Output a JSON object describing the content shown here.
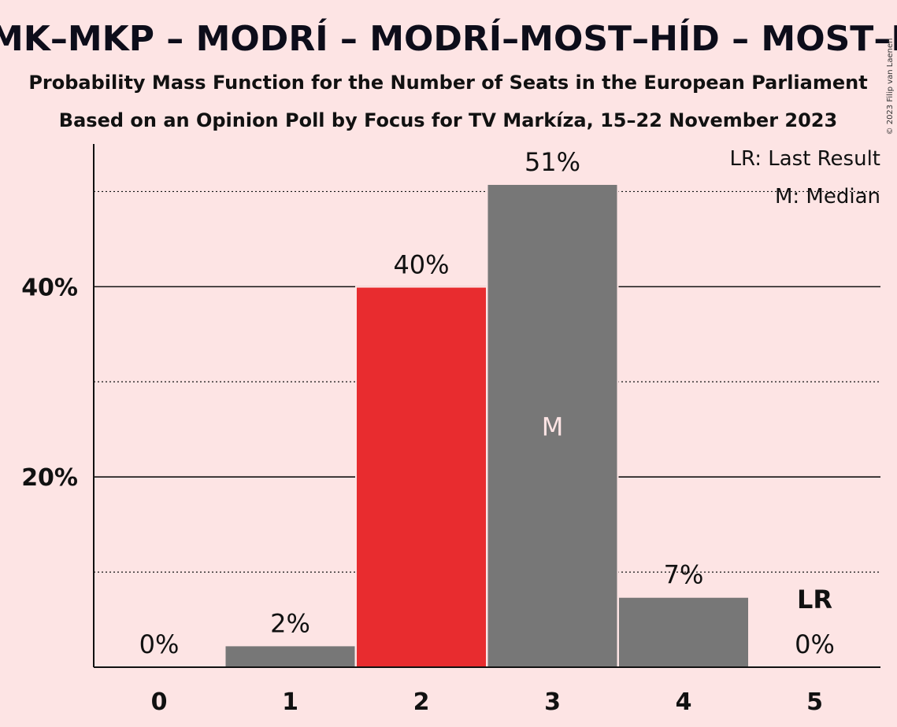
{
  "header": {
    "title": "– SMK–MKP – MODRÍ – MODRÍ–MOST–HÍD – MOST–HÍD",
    "subtitle": "Probability Mass Function for the Number of Seats in the European Parliament",
    "subtitle2": "Based on an Opinion Poll by Focus for TV Markíza, 15–22 November 2023"
  },
  "legend": {
    "last_result": "LR: Last Result",
    "median": "M: Median"
  },
  "copyright": "© 2023 Filip van Laenen",
  "colors": {
    "background": "#fde4e4",
    "bar_default": "#777777",
    "bar_highlight": "#e82c2f",
    "median_text": "#fde4e4"
  },
  "chart_data": {
    "type": "bar",
    "categories": [
      "0",
      "1",
      "2",
      "3",
      "4",
      "5"
    ],
    "values": [
      0,
      2.2,
      39.9,
      50.7,
      7.3,
      0
    ],
    "value_labels": [
      "0%",
      "2%",
      "40%",
      "51%",
      "7%",
      "0%"
    ],
    "highlight_index": 2,
    "median_index": 3,
    "median_label": "M",
    "last_result_index": 5,
    "last_result_label": "LR",
    "ylim": [
      0,
      55
    ],
    "yticks": [
      {
        "value": 20,
        "label": "20%"
      },
      {
        "value": 40,
        "label": "40%"
      }
    ],
    "minor_gridlines": [
      10,
      30,
      50
    ],
    "major_gridlines": [
      20,
      40
    ],
    "legend_position": "top-right"
  }
}
